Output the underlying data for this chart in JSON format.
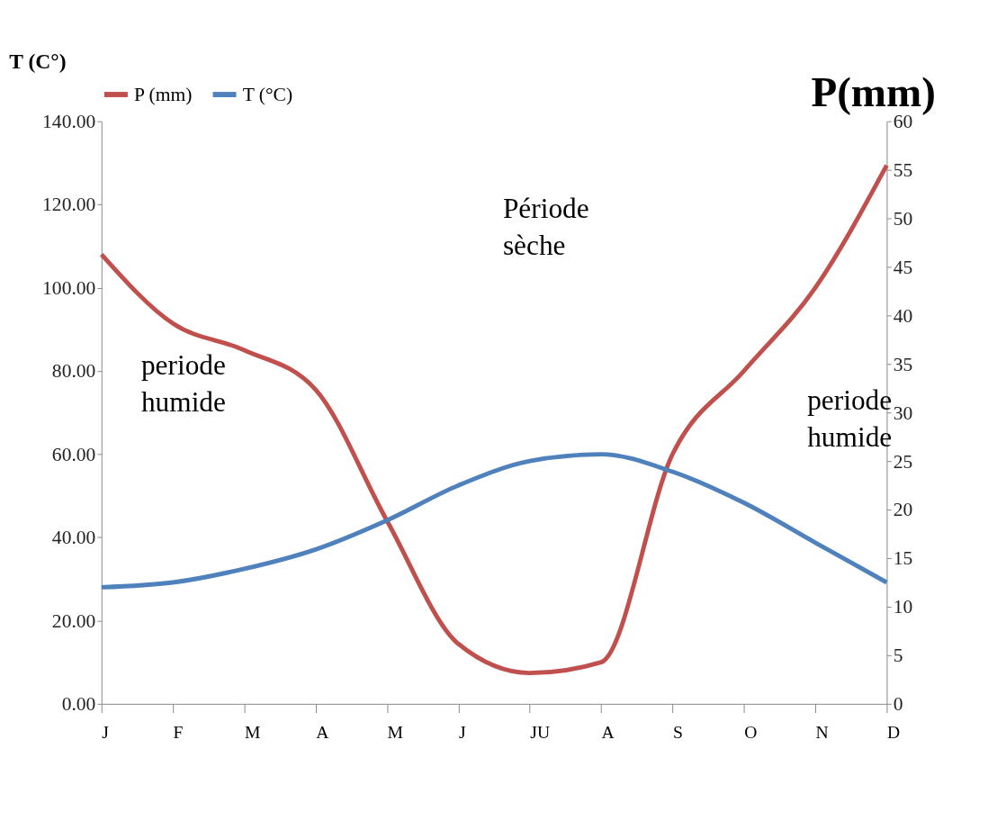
{
  "chart_data": {
    "type": "line",
    "categories": [
      "J",
      "F",
      "M",
      "A",
      "M",
      "J",
      "JU",
      "A",
      "S",
      "O",
      "N",
      "D"
    ],
    "series": [
      {
        "name": "P (mm)",
        "color": "#c0504d",
        "values": [
          108,
          91.4,
          85,
          75.5,
          44,
          14.4,
          7.4,
          10,
          60,
          80,
          100,
          129.4
        ]
      },
      {
        "name": "T (°C)",
        "color": "#4f81bd",
        "axis": "y2",
        "values": [
          12,
          12.5,
          13.9,
          15.9,
          18.9,
          22.5,
          25,
          25.7,
          23.9,
          20.7,
          16.6,
          12.5
        ]
      }
    ],
    "ylabel": "T (C°)",
    "y2label": "P(mm)",
    "ylim": [
      0,
      140
    ],
    "yticks": [
      {
        "value": 0,
        "label": "0.00"
      },
      {
        "value": 20,
        "label": "20.00"
      },
      {
        "value": 40,
        "label": "40.00"
      },
      {
        "value": 60,
        "label": "60.00"
      },
      {
        "value": 80,
        "label": "80.00"
      },
      {
        "value": 100,
        "label": "100.00"
      },
      {
        "value": 120,
        "label": "120.00"
      },
      {
        "value": 140,
        "label": "140.00"
      }
    ],
    "y2lim": [
      0,
      60
    ],
    "y2ticks": [
      0,
      5,
      10,
      15,
      20,
      25,
      30,
      35,
      40,
      45,
      50,
      55,
      60
    ],
    "annotations": [
      "periode humide",
      "Période sèche",
      "periode humide"
    ],
    "legend": "top",
    "grid": false,
    "marker": "none",
    "line_style": "solid"
  }
}
